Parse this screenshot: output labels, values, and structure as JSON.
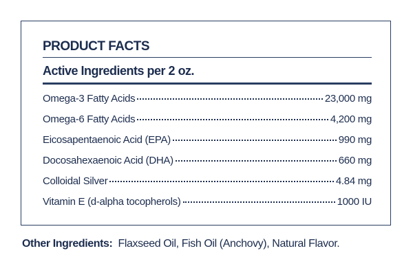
{
  "header": {
    "title": "PRODUCT FACTS",
    "subtitle": "Active Ingredients per 2 oz."
  },
  "table": {
    "rows": [
      [
        "Omega-3 Fatty Acids",
        "23,000 mg"
      ],
      [
        "Omega-6 Fatty Acids",
        "4,200 mg"
      ],
      [
        "Eicosapentaenoic Acid (EPA)",
        "990 mg"
      ],
      [
        "Docosahexaenoic Acid (DHA)",
        "660 mg"
      ],
      [
        "Colloidal Silver",
        "4.84 mg"
      ],
      [
        "Vitamin E (d-alpha tocopherols)",
        "1000 IU"
      ]
    ]
  },
  "footer": {
    "label": "Other Ingredients:",
    "text": "Flaxseed Oil, Fish Oil (Anchovy), Natural Flavor."
  }
}
